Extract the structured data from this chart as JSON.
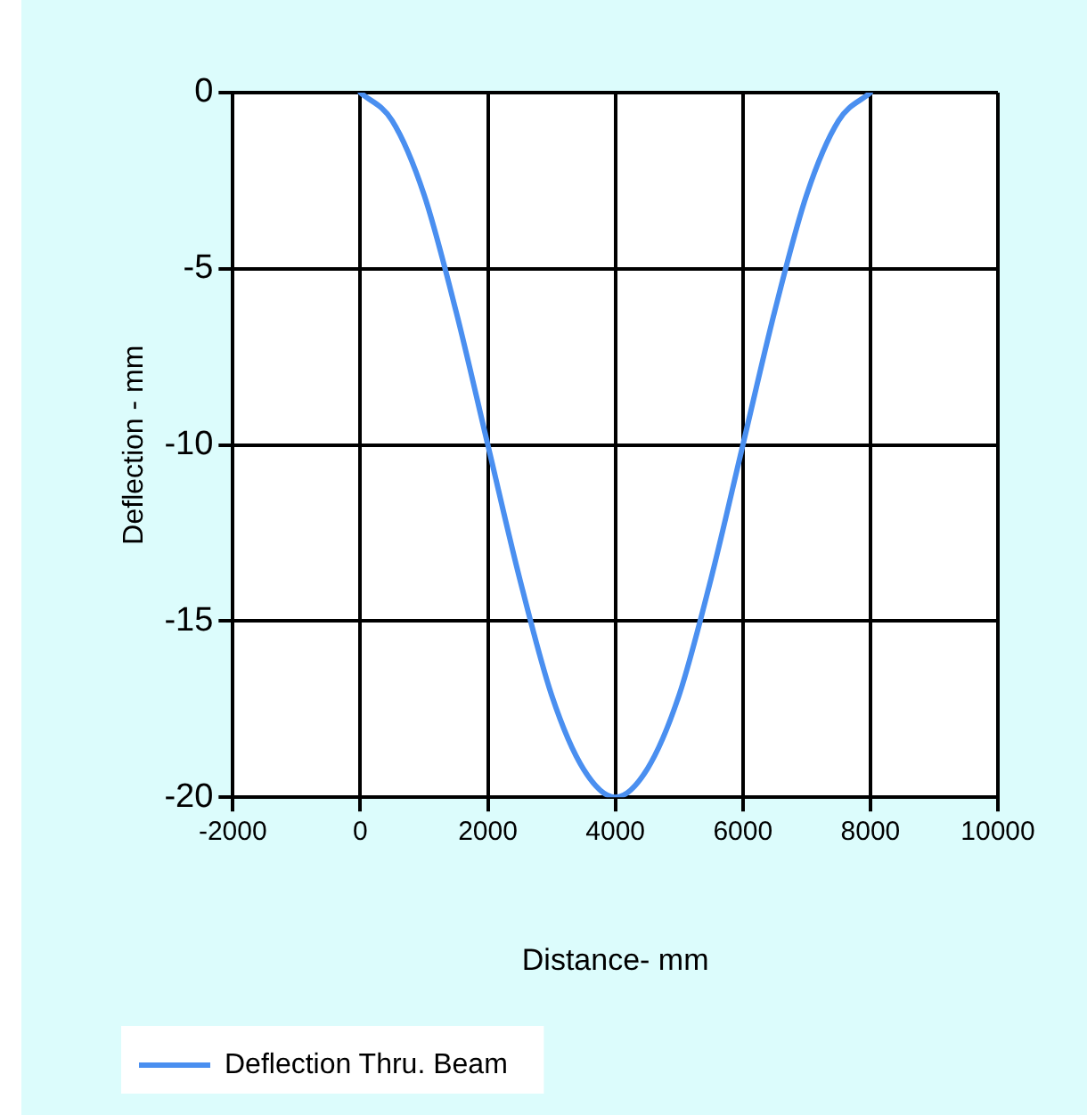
{
  "chart_data": {
    "type": "line",
    "xlabel": "Distance- mm",
    "ylabel": "Deflection - mm",
    "x": [
      0,
      500,
      1000,
      1500,
      2000,
      2500,
      3000,
      3500,
      4000,
      4500,
      5000,
      5500,
      6000,
      6500,
      7000,
      7500,
      8000
    ],
    "series": [
      {
        "name": "Deflection Thru. Beam",
        "color": "#4a8ff0",
        "values": [
          0,
          -0.8,
          -2.9,
          -6.2,
          -10,
          -13.8,
          -17.1,
          -19.2,
          -20,
          -19.2,
          -17.1,
          -13.8,
          -10,
          -6.2,
          -2.9,
          -0.8,
          0
        ]
      }
    ],
    "xlim": [
      -2000,
      10000
    ],
    "xticks": [
      -2000,
      0,
      2000,
      4000,
      6000,
      8000,
      10000
    ],
    "ylim": [
      -20,
      0
    ],
    "yticks": [
      -20,
      -15,
      -10,
      -5,
      0
    ],
    "grid": true,
    "legend": "bottom left",
    "marker": "none",
    "line_style": "solid"
  }
}
